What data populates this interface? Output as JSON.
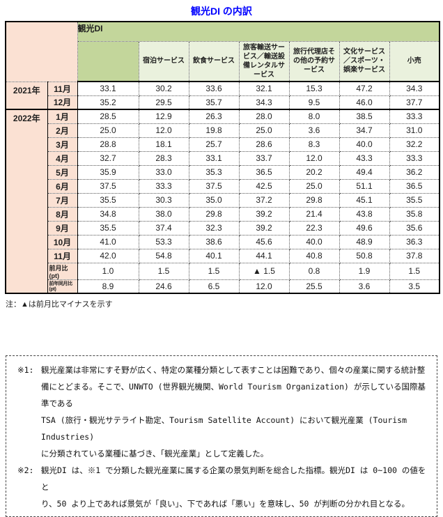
{
  "title": "観光DI の内訳",
  "colors": {
    "header_green": "#c3d69b",
    "subheader_green": "#eaf1dd",
    "row_label_pink": "#fbe1d3",
    "title_blue": "#0000ff",
    "border_black": "#000000"
  },
  "table": {
    "group_header": "観光DI",
    "sub_headers": [
      "宿泊サービス",
      "飲食サービス",
      "旅客輸送サービス／輸送設備レンタルサービス",
      "旅行代理店その他の予約サービス",
      "文化サービス／スポーツ・娯楽サービス",
      "小売"
    ],
    "rows": [
      {
        "year": "2021年",
        "year_rowspan": 2,
        "month": "11月",
        "values": [
          "33.1",
          "30.2",
          "33.6",
          "32.1",
          "15.3",
          "47.2",
          "34.3"
        ]
      },
      {
        "month": "12月",
        "values": [
          "35.2",
          "29.5",
          "35.7",
          "34.3",
          "9.5",
          "46.0",
          "37.7"
        ]
      },
      {
        "year": "2022年",
        "year_rowspan": 13,
        "month": "1月",
        "group_start": true,
        "values": [
          "28.5",
          "12.9",
          "26.3",
          "28.0",
          "8.0",
          "38.5",
          "33.3"
        ]
      },
      {
        "month": "2月",
        "values": [
          "25.0",
          "12.0",
          "19.8",
          "25.0",
          "3.6",
          "34.7",
          "31.0"
        ]
      },
      {
        "month": "3月",
        "values": [
          "28.8",
          "18.1",
          "25.7",
          "28.6",
          "8.3",
          "40.0",
          "32.2"
        ]
      },
      {
        "month": "4月",
        "values": [
          "32.7",
          "28.3",
          "33.1",
          "33.7",
          "12.0",
          "43.3",
          "33.3"
        ]
      },
      {
        "month": "5月",
        "values": [
          "35.9",
          "33.0",
          "35.3",
          "36.5",
          "20.2",
          "49.4",
          "36.2"
        ]
      },
      {
        "month": "6月",
        "values": [
          "37.5",
          "33.3",
          "37.5",
          "42.5",
          "25.0",
          "51.1",
          "36.5"
        ]
      },
      {
        "month": "7月",
        "values": [
          "35.5",
          "30.3",
          "35.0",
          "37.2",
          "29.8",
          "45.1",
          "35.5"
        ]
      },
      {
        "month": "8月",
        "values": [
          "34.8",
          "38.0",
          "29.8",
          "39.2",
          "21.4",
          "43.8",
          "35.8"
        ]
      },
      {
        "month": "9月",
        "values": [
          "35.5",
          "37.4",
          "32.3",
          "39.2",
          "22.3",
          "49.6",
          "35.6"
        ]
      },
      {
        "month": "10月",
        "values": [
          "41.0",
          "53.3",
          "38.6",
          "45.6",
          "40.0",
          "48.9",
          "36.3"
        ]
      },
      {
        "month": "11月",
        "values": [
          "42.0",
          "54.8",
          "40.1",
          "44.1",
          "40.8",
          "50.8",
          "37.8"
        ]
      },
      {
        "month": "前月比 (pt)",
        "label_style": "small",
        "values": [
          "1.0",
          "1.5",
          "1.5",
          "▲ 1.5",
          "0.8",
          "1.9",
          "1.5"
        ]
      },
      {
        "month": "前年同月比 (pt)",
        "label_style": "smaller",
        "values": [
          "8.9",
          "24.6",
          "6.5",
          "12.0",
          "25.5",
          "3.6",
          "3.5"
        ]
      }
    ]
  },
  "note": "注：▲は前月比マイナスを示す",
  "footnotes": [
    {
      "label": "※1:",
      "text": "観光産業は非常にすそ野が広く、特定の業種分類として表すことは困難であり、個々の産業に関する統計整\n備にとどまる。そこで、UNWTO (世界観光機関、World Tourism Organization) が示している国際基準である\nTSA (旅行・観光サテライト勘定、Tourism Satellite Account) において観光産業 (Tourism Industries)\nに分類されている業種に基づき、「観光産業」として定義した。"
    },
    {
      "label": "※2:",
      "text": "観光DI は、※1 で分類した観光産業に属する企業の景気判断を総合した指標。観光DI は 0~100 の値をと\nり、50 より上であれば景気が「良い」、下であれば「悪い」を意味し、50 が判断の分かれ目となる。"
    }
  ]
}
